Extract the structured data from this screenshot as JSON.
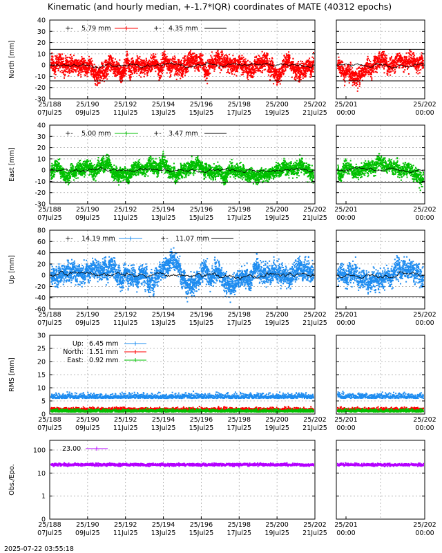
{
  "title": "Kinematic (and hourly median, +-1.7*IQR) coordinates of MATE (40312 epochs)",
  "timestamp": "2025-07-22 03:55:18",
  "colors": {
    "north": "#ff0000",
    "east": "#00c000",
    "up": "#1e8cf0",
    "obs": "#b400ff",
    "black": "#000000",
    "grid": "#aaaaaa"
  },
  "x_axis": {
    "left_ticks": [
      {
        "top": "25/188",
        "bottom": "07Jul25"
      },
      {
        "top": "25/190",
        "bottom": "09Jul25"
      },
      {
        "top": "25/192",
        "bottom": "11Jul25"
      },
      {
        "top": "25/194",
        "bottom": "13Jul25"
      },
      {
        "top": "25/196",
        "bottom": "15Jul25"
      },
      {
        "top": "25/198",
        "bottom": "17Jul25"
      },
      {
        "top": "25/200",
        "bottom": "19Jul25"
      },
      {
        "top": "25/202",
        "bottom": "21Jul25"
      }
    ],
    "right_ticks": [
      {
        "top": "25/201",
        "bottom": "00:00"
      },
      {
        "top": "25/202",
        "bottom": "00:00"
      }
    ]
  },
  "chart_data": [
    {
      "type": "scatter",
      "ylabel": "North [mm]",
      "ylim": [
        -30,
        40
      ],
      "yticks": [
        "40",
        "30",
        "20",
        "10",
        "0",
        "-10",
        "-20",
        "-30"
      ],
      "band": [
        14,
        -14
      ],
      "series": [
        {
          "legend": "5.79 mm",
          "color": "red",
          "spread": 6.5
        },
        {
          "legend": "4.35 mm",
          "color": "black"
        }
      ]
    },
    {
      "type": "scatter",
      "ylabel": "East [mm]",
      "ylim": [
        -30,
        40
      ],
      "yticks": [
        "40",
        "30",
        "20",
        "10",
        "0",
        "-10",
        "-20",
        "-30"
      ],
      "band": [
        13,
        -11
      ],
      "series": [
        {
          "legend": "5.00 mm",
          "color": "green",
          "spread": 5.5
        },
        {
          "legend": "3.47 mm",
          "color": "black"
        }
      ]
    },
    {
      "type": "scatter",
      "ylabel": "Up [mm]",
      "ylim": [
        -60,
        80
      ],
      "yticks": [
        "80",
        "60",
        "40",
        "20",
        "0",
        "-20",
        "-40",
        "-60"
      ],
      "band": [
        40,
        -38
      ],
      "series": [
        {
          "legend": "14.19 mm",
          "color": "blue",
          "spread": 16
        },
        {
          "legend": "11.07 mm",
          "color": "black"
        }
      ]
    },
    {
      "type": "scatter",
      "ylabel": "RMS [mm]",
      "ylim": [
        0,
        30
      ],
      "yticks": [
        "30",
        "25",
        "20",
        "15",
        "10",
        "5",
        "0"
      ],
      "series": [
        {
          "legend_label": "Up:",
          "legend": "6.45 mm",
          "color": "blue",
          "mean": 6.5
        },
        {
          "legend_label": "North:",
          "legend": "1.51 mm",
          "color": "red",
          "mean": 1.6
        },
        {
          "legend_label": "East:",
          "legend": "0.92 mm",
          "color": "green",
          "mean": 1.0
        }
      ]
    },
    {
      "type": "scatter",
      "ylabel": "Obs./Epo.",
      "ylim": [
        0.1,
        200
      ],
      "log_scale": true,
      "yticks": [
        "100",
        "10",
        "1",
        "0"
      ],
      "series": [
        {
          "legend": "23.00",
          "color": "purple",
          "mean": 23
        }
      ]
    }
  ]
}
